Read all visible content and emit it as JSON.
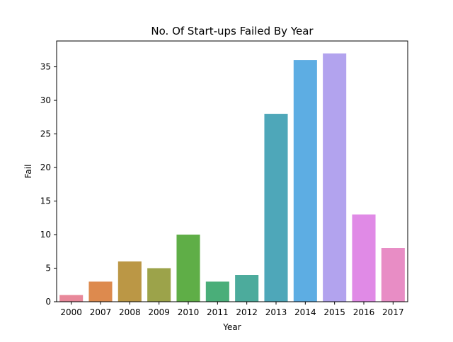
{
  "chart_data": {
    "type": "bar",
    "title": "No. Of Start-ups Failed By Year",
    "xlabel": "Year",
    "ylabel": "Fail",
    "categories": [
      "2000",
      "2007",
      "2008",
      "2009",
      "2010",
      "2011",
      "2012",
      "2013",
      "2014",
      "2015",
      "2016",
      "2017"
    ],
    "values": [
      1,
      3,
      6,
      5,
      10,
      3,
      4,
      28,
      36,
      37,
      13,
      8
    ],
    "colors": [
      "#e8889a",
      "#dd8a4e",
      "#bb9745",
      "#9ca34a",
      "#5fae47",
      "#4aae79",
      "#4cab9c",
      "#4ea7b9",
      "#5dade3",
      "#b2a3ee",
      "#e08ae6",
      "#e88dc5"
    ],
    "ylim": [
      0,
      38.85
    ],
    "yticks": [
      0,
      5,
      10,
      15,
      20,
      25,
      30,
      35
    ],
    "grid": false,
    "legend": "none"
  }
}
